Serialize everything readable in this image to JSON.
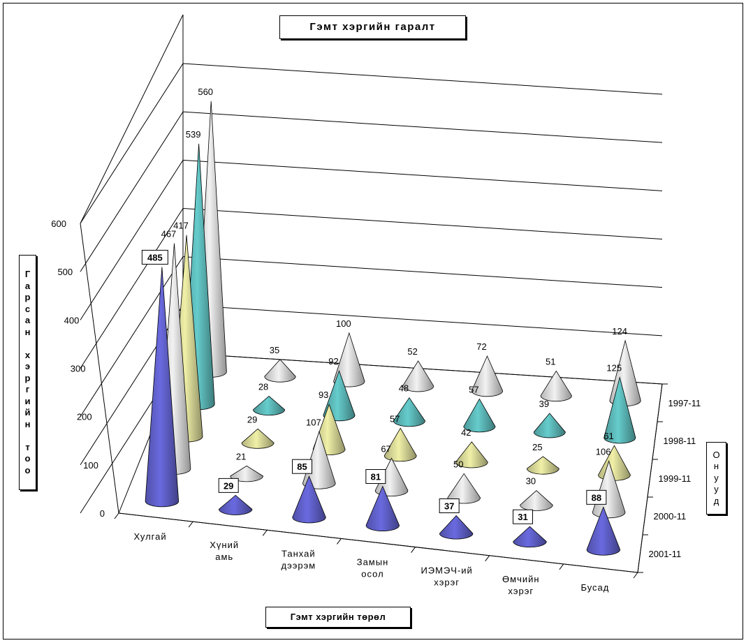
{
  "chart_data": {
    "type": "3d-cone",
    "title": "Гэмт хэргийн гаралт",
    "xlabel": "Гэмт хэргийн төрөл",
    "ylabel": "Гарсан хэргийн тоо",
    "zlabel": "Онууд",
    "categories": [
      [
        "Хулгай"
      ],
      [
        "Хүний",
        "амь"
      ],
      [
        "Танхай",
        "дээрэм"
      ],
      [
        "Замын",
        "осол"
      ],
      [
        "ИЭМЭЧ-ий",
        "хэрэг"
      ],
      [
        "Өмчийн",
        "хэрэг"
      ],
      [
        "Бусад"
      ]
    ],
    "ylim": [
      0,
      600
    ],
    "yticks": [
      "0",
      "100",
      "200",
      "300",
      "400",
      "500",
      "600"
    ],
    "series": [
      {
        "name": "1997-11",
        "color": "#f2f2f2",
        "labels": [
          "560",
          "35",
          "100",
          "52",
          "72",
          "51",
          "124"
        ],
        "values": [
          560,
          35,
          100,
          52,
          72,
          51,
          124
        ]
      },
      {
        "name": "1998-11",
        "color": "#66cccc",
        "labels": [
          "539",
          "28",
          "92",
          "48",
          "57",
          "39",
          "125"
        ],
        "values": [
          539,
          28,
          92,
          48,
          57,
          39,
          125
        ]
      },
      {
        "name": "1999-11",
        "color": "#f0f0a8",
        "labels": [
          "417",
          "29",
          "93",
          "57",
          "42",
          "25",
          "61"
        ],
        "values": [
          417,
          29,
          93,
          57,
          42,
          25,
          61
        ]
      },
      {
        "name": "2000-11",
        "color": "#f2f2f2",
        "labels": [
          "467",
          "21",
          "107",
          "67",
          "50",
          "30",
          "106"
        ],
        "values": [
          467,
          21,
          107,
          67,
          50,
          30,
          106
        ]
      },
      {
        "name": "2001-11",
        "color": "#6a6ae0",
        "labels": [
          "485",
          "29",
          "85",
          "81",
          "37",
          "31",
          "88"
        ],
        "values": [
          485,
          29,
          85,
          81,
          37,
          31,
          88
        ]
      }
    ],
    "grid": true
  }
}
